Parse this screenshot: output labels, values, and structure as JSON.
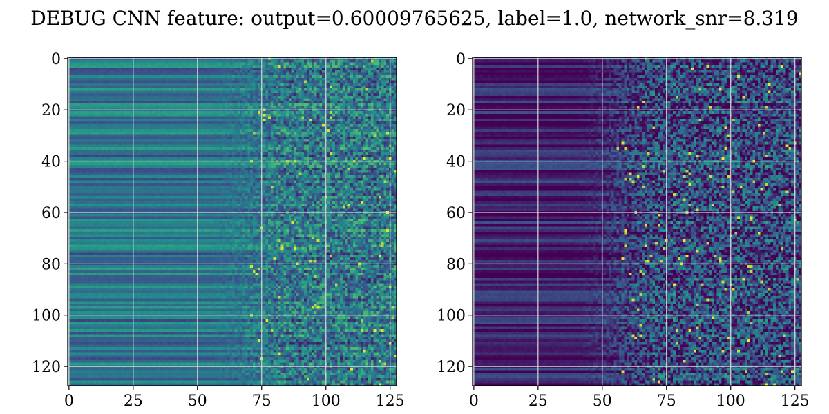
{
  "figure": {
    "title": "DEBUG CNN feature: output=0.60009765625, label=1.0, network_snr=8.319"
  },
  "chart_data": [
    {
      "type": "heatmap",
      "colormap": "viridis",
      "rows": 128,
      "cols": 128,
      "xlim": [
        0,
        127
      ],
      "ylim": [
        127,
        0
      ],
      "xticks": [
        0,
        25,
        50,
        75,
        100,
        125
      ],
      "yticks": [
        0,
        20,
        40,
        60,
        80,
        100,
        120
      ],
      "grid": true,
      "pattern": {
        "left_band_end_col": 70,
        "left_mean": 0.38,
        "right_mean": 0.4,
        "right_noise": 0.5,
        "hot_spot_probability": 0.012
      }
    },
    {
      "type": "heatmap",
      "colormap": "viridis",
      "rows": 128,
      "cols": 128,
      "xlim": [
        0,
        127
      ],
      "ylim": [
        127,
        0
      ],
      "xticks": [
        0,
        25,
        50,
        75,
        100,
        125
      ],
      "yticks": [
        0,
        20,
        40,
        60,
        80,
        100,
        120
      ],
      "grid": true,
      "pattern": {
        "left_band_end_col": 55,
        "left_mean": 0.08,
        "right_mean": 0.22,
        "right_noise": 0.6,
        "hot_spot_probability": 0.015
      }
    }
  ]
}
